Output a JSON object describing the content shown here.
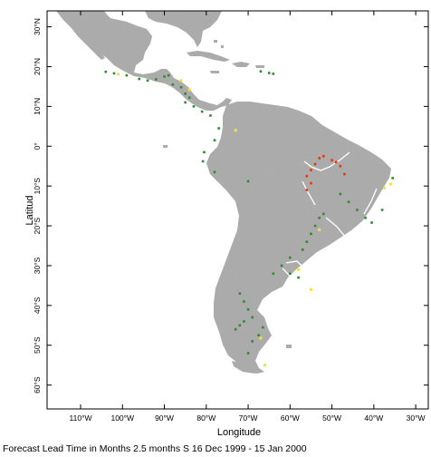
{
  "map": {
    "axis_x_label": "Longitude",
    "axis_y_label": "Latitud",
    "lon_ticks": [
      "110°W",
      "100°W",
      "90°W",
      "80°W",
      "70°W",
      "60°W",
      "50°W",
      "40°W",
      "30°W"
    ],
    "lat_ticks": [
      "30°N",
      "20°N",
      "10°N",
      "0°",
      "10°S",
      "20°S",
      "30°S",
      "40°S",
      "50°S",
      "60°S"
    ],
    "lon_values": [
      -110,
      -100,
      -90,
      -80,
      -70,
      -60,
      -50,
      -40,
      -30
    ],
    "lat_values": [
      30,
      20,
      10,
      0,
      -10,
      -20,
      -30,
      -40,
      -50,
      -60
    ],
    "lon_range": [
      -118,
      -27
    ],
    "lat_range": [
      34,
      -66
    ],
    "colors": {
      "land": "#a6a6a6",
      "land_shade": "#8f8f8f",
      "river_green": "#2e8b2e",
      "river_red": "#ee3300",
      "marker_yellow": "#f2e23a",
      "frame": "#000000"
    },
    "river_marks": {
      "green": [
        [
          -104,
          18.7
        ],
        [
          -102,
          18.3
        ],
        [
          -99,
          17.8
        ],
        [
          -96,
          16.9
        ],
        [
          -94,
          16.5
        ],
        [
          -92,
          16.8
        ],
        [
          -90,
          17.5
        ],
        [
          -89,
          17.8
        ],
        [
          -88,
          15.5
        ],
        [
          -86,
          14.8
        ],
        [
          -85,
          13.2
        ],
        [
          -84,
          12.2
        ],
        [
          -85,
          11.0
        ],
        [
          -83,
          10.0
        ],
        [
          -81,
          8.7
        ],
        [
          -79,
          7.7
        ],
        [
          -77,
          4.5
        ],
        [
          -78,
          1.5
        ],
        [
          -80.5,
          -1.5
        ],
        [
          -80.8,
          -3.8
        ],
        [
          -78,
          -6.5
        ],
        [
          -70,
          -8.8
        ],
        [
          -67,
          18.8
        ],
        [
          -65,
          18.4
        ],
        [
          -64,
          18.2
        ],
        [
          -48,
          -12
        ],
        [
          -46,
          -14
        ],
        [
          -44,
          -16
        ],
        [
          -42,
          -18
        ],
        [
          -40.5,
          -19.2
        ],
        [
          -38,
          -16
        ],
        [
          -35.5,
          -8
        ],
        [
          -52,
          -17
        ],
        [
          -53,
          -18
        ],
        [
          -54,
          -20
        ],
        [
          -55,
          -22
        ],
        [
          -56,
          -24
        ],
        [
          -57,
          -26
        ],
        [
          -60,
          -28
        ],
        [
          -62,
          -30
        ],
        [
          -64,
          -32
        ],
        [
          -60,
          -32
        ],
        [
          -58,
          -33
        ],
        [
          -72,
          -37
        ],
        [
          -71,
          -39
        ],
        [
          -70,
          -41
        ],
        [
          -69,
          -43
        ],
        [
          -71,
          -44
        ],
        [
          -72,
          -45
        ],
        [
          -73,
          -46
        ],
        [
          -66.5,
          -45.5
        ],
        [
          -67.5,
          -47.5
        ],
        [
          -69,
          -49
        ],
        [
          -70,
          -52
        ]
      ],
      "red": [
        [
          -53,
          -3
        ],
        [
          -54,
          -4.5
        ],
        [
          -55,
          -6
        ],
        [
          -56,
          -7.5
        ],
        [
          -55,
          -9.3
        ],
        [
          -56,
          -11
        ],
        [
          -50,
          -3.5
        ],
        [
          -49,
          -4
        ],
        [
          -48,
          -5
        ],
        [
          -47,
          -7
        ],
        [
          -52,
          -2.5
        ]
      ],
      "yellow": [
        [
          -101,
          18.1
        ],
        [
          -86,
          16.5
        ],
        [
          -84,
          14.2
        ],
        [
          -73,
          4
        ],
        [
          -53,
          -21
        ],
        [
          -58,
          -31
        ],
        [
          -55,
          -36
        ],
        [
          -67,
          -48.2
        ],
        [
          -66,
          -55
        ],
        [
          -37.5,
          -10.5
        ],
        [
          -36,
          -9.5
        ]
      ]
    }
  },
  "caption": "Forecast Lead Time in Months 2.5 months S 16 Dec 1999 - 15 Jan 2000"
}
